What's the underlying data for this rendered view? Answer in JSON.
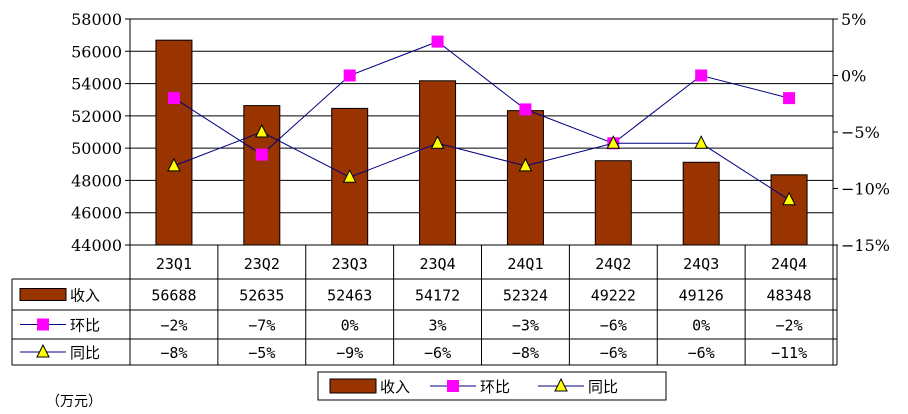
{
  "chart_data": {
    "type": "bar",
    "categories": [
      "23Q1",
      "23Q2",
      "23Q3",
      "23Q4",
      "24Q1",
      "24Q2",
      "24Q3",
      "24Q4"
    ],
    "series": [
      {
        "name": "收入",
        "type": "bar",
        "axis": "left",
        "values": [
          56688,
          52635,
          52463,
          54172,
          52324,
          49222,
          49126,
          48348
        ],
        "labels": [
          "56688",
          "52635",
          "52463",
          "54172",
          "52324",
          "49222",
          "49126",
          "48348"
        ],
        "color": "#993300"
      },
      {
        "name": "环比",
        "type": "line",
        "axis": "right",
        "values": [
          -2,
          -7,
          0,
          3,
          -3,
          -6,
          0,
          -2
        ],
        "labels": [
          "-2%",
          "-7%",
          "0%",
          "3%",
          "-3%",
          "-6%",
          "0%",
          "-2%"
        ],
        "color": "#ff00ff",
        "marker": "square"
      },
      {
        "name": "同比",
        "type": "line",
        "axis": "right",
        "values": [
          -8,
          -5,
          -9,
          -6,
          -8,
          -6,
          -6,
          -11
        ],
        "labels": [
          "-8%",
          "-5%",
          "-9%",
          "-6%",
          "-8%",
          "-6%",
          "-6%",
          "-11%"
        ],
        "color": "#ffff00",
        "marker": "triangle"
      }
    ],
    "ylim_left": [
      44000,
      58000
    ],
    "yticks_left": [
      "58000",
      "56000",
      "54000",
      "52000",
      "50000",
      "48000",
      "46000",
      "44000"
    ],
    "ylim_right": [
      -15,
      5
    ],
    "yticks_right": [
      "5%",
      "0%",
      "-5%",
      "-10%",
      "-15%"
    ],
    "unit_label": "（万元）",
    "line_color": "#000080",
    "legend_position": "bottom",
    "grid": true
  }
}
